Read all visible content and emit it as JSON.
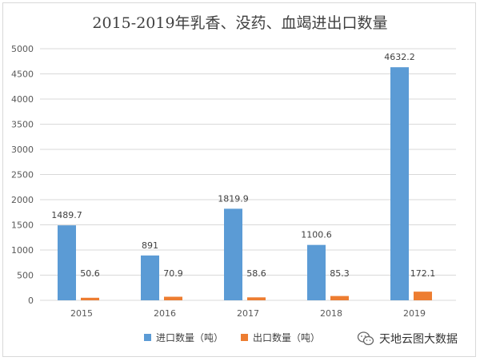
{
  "chart_data": {
    "type": "bar",
    "title": "2015-2019年乳香、没药、血竭进出口数量",
    "categories": [
      "2015",
      "2016",
      "2017",
      "2018",
      "2019"
    ],
    "series": [
      {
        "name": "进口数量（吨）",
        "values": [
          1489.7,
          891,
          1819.9,
          1100.6,
          4632.2
        ],
        "labels": [
          "1489.7",
          "891",
          "1819.9",
          "1100.6",
          "4632.2"
        ],
        "color": "#5b9bd5"
      },
      {
        "name": "出口数量（吨）",
        "values": [
          50.6,
          70.9,
          58.6,
          85.3,
          172.1
        ],
        "labels": [
          "50.6",
          "70.9",
          "58.6",
          "85.3",
          "172.1"
        ],
        "color": "#ed7d31"
      }
    ],
    "yticks": [
      "0",
      "500",
      "1000",
      "1500",
      "2000",
      "2500",
      "3000",
      "3500",
      "4000",
      "4500",
      "5000"
    ],
    "ylim": [
      0,
      5000
    ],
    "grid": true,
    "legend_position": "bottom"
  },
  "watermark": {
    "text": "天地云图大数据",
    "icon": "wechat-icon"
  }
}
